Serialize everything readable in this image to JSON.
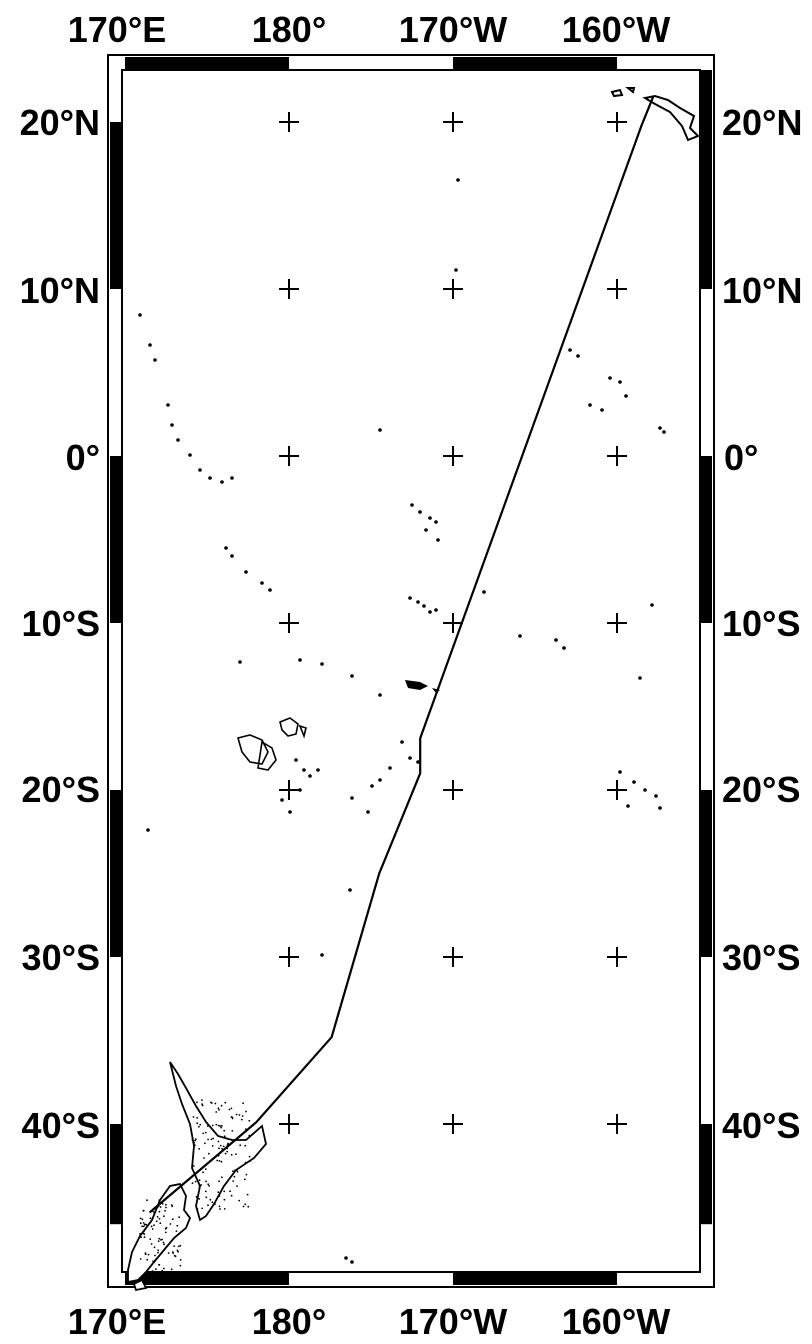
{
  "map": {
    "longitude_labels": [
      "170°E",
      "180°",
      "170°W",
      "160°W"
    ],
    "latitude_labels": [
      "20°N",
      "10°N",
      "0°",
      "10°S",
      "20°S",
      "30°S",
      "40°S"
    ],
    "extent": {
      "lon_min": 170,
      "lon_max": 205,
      "lat_min": -46,
      "lat_max": 24
    },
    "graticule_step_deg": 10,
    "track": [
      {
        "lon": 171.5,
        "lat": -45.3
      },
      {
        "lon": 178.0,
        "lat": -39.9
      },
      {
        "lon": 182.6,
        "lat": -34.8
      },
      {
        "lon": 185.5,
        "lat": -25.0
      },
      {
        "lon": 188.0,
        "lat": -19.0
      },
      {
        "lon": 188.0,
        "lat": -16.9
      },
      {
        "lon": 201.5,
        "lat": 19.8
      },
      {
        "lon": 202.2,
        "lat": 21.5
      }
    ],
    "track_color": "#000000",
    "land_color": "#000000"
  }
}
